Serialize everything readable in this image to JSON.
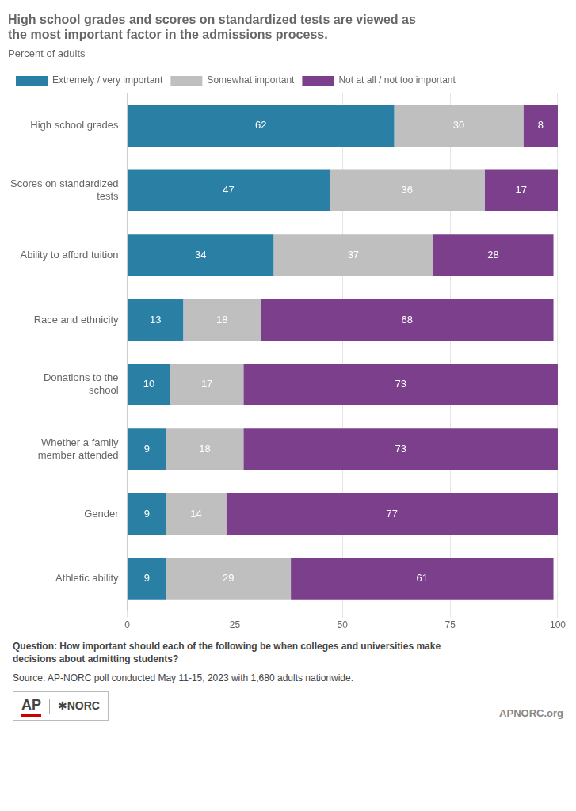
{
  "chart_data": {
    "type": "bar",
    "orientation": "horizontal",
    "stacked": true,
    "title": "High school grades and scores on standardized tests are viewed as\nthe most important factor in the admissions process.",
    "subtitle": "Percent of adults",
    "categories": [
      "High school grades",
      "Scores on standardized\ntests",
      "Ability to afford tuition",
      "Race and ethnicity",
      "Donations to the\nschool",
      "Whether a family\nmember attended",
      "Gender",
      "Athletic ability"
    ],
    "series": [
      {
        "name": "Extremely / very important",
        "color": "#2a7fa5",
        "values": [
          62,
          47,
          34,
          13,
          10,
          9,
          9,
          9
        ]
      },
      {
        "name": "Somewhat important",
        "color": "#c0bfc0",
        "values": [
          30,
          36,
          37,
          18,
          17,
          18,
          14,
          29
        ]
      },
      {
        "name": "Not at all / not too important",
        "color": "#7b3f8c",
        "values": [
          8,
          17,
          28,
          68,
          73,
          73,
          77,
          61
        ]
      }
    ],
    "xlim": [
      0,
      100
    ],
    "xticks": [
      0,
      25,
      50,
      75,
      100
    ],
    "grid": true,
    "legend": "upper left",
    "data_labels": true,
    "annotations": [
      "Question: How important should each of the following be when colleges and universities make\ndecisions about admitting students?",
      "Source: AP-NORC poll conducted May 11-15, 2023 with 1,680 adults nationwide.",
      "AP",
      "✱NORC",
      "APNORC.org"
    ]
  }
}
